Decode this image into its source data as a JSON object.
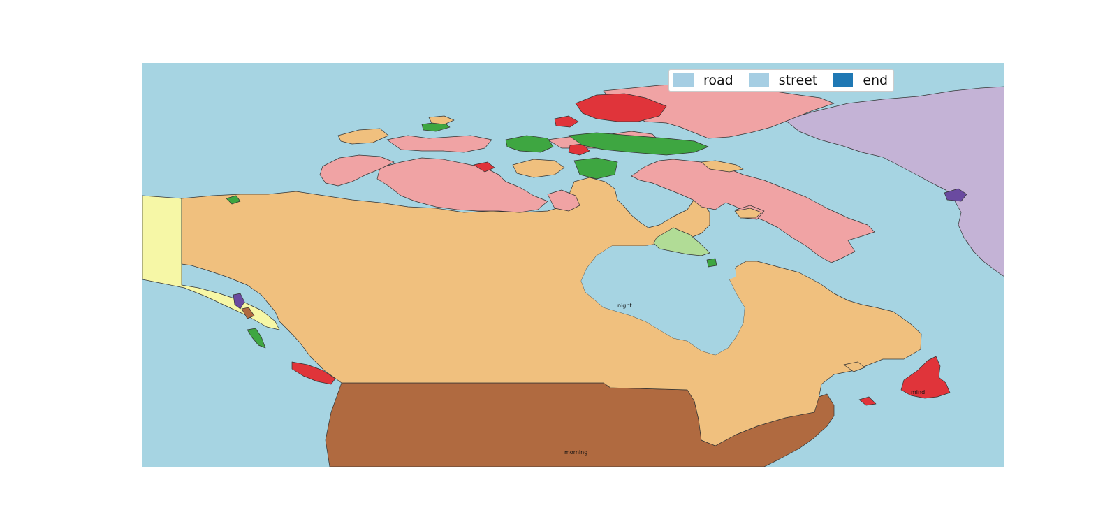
{
  "legend": {
    "items": [
      {
        "label": "road",
        "color": "#a6cee3"
      },
      {
        "label": "street",
        "color": "#a6cee3"
      },
      {
        "label": "end",
        "color": "#1f78b4"
      }
    ]
  },
  "map": {
    "ocean_color": "#a6d4e2",
    "labels": {
      "hudson": "night",
      "south": "morning",
      "newfoundland": "mind"
    },
    "region_colors": {
      "canada": "#f0c07e",
      "usa": "#b06a40",
      "alaska": "#f6f7a6",
      "greenland": "#c4b3d6",
      "arctic_pink": "#f0a3a4",
      "red": "#e0343a",
      "green": "#3ea641",
      "light_green": "#b1dc96",
      "purple": "#6a4aa0",
      "brown": "#b06a40"
    }
  }
}
